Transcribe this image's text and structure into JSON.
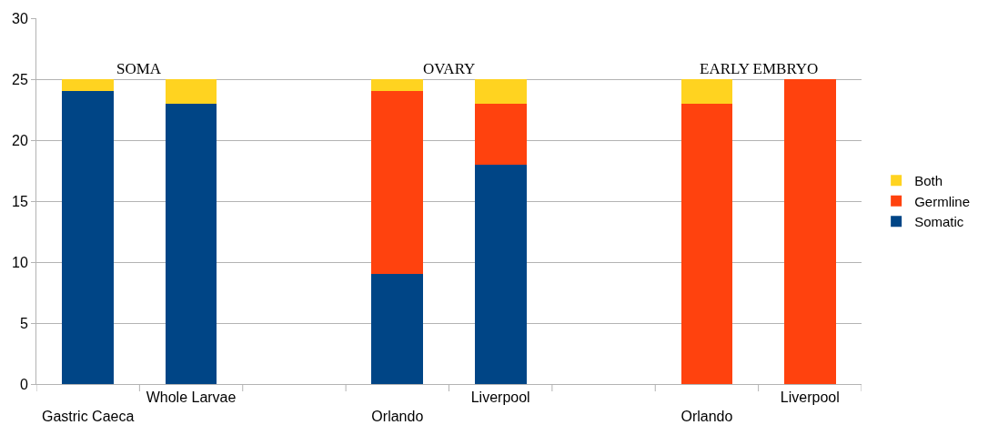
{
  "chart_data": {
    "type": "bar",
    "stacked": true,
    "categories": [
      "Gastric Caeca",
      "Whole Larvae",
      null,
      "Orlando",
      "Liverpool",
      null,
      "Orlando",
      "Liverpool"
    ],
    "series": [
      {
        "name": "Somatic",
        "color": "#004586",
        "values": [
          24,
          23,
          null,
          9,
          18,
          null,
          0,
          0
        ]
      },
      {
        "name": "Germline",
        "color": "#ff420e",
        "values": [
          0,
          0,
          null,
          15,
          5,
          null,
          23,
          25
        ]
      },
      {
        "name": "Both",
        "color": "#ffd320",
        "values": [
          1,
          2,
          null,
          1,
          2,
          null,
          2,
          0
        ]
      }
    ],
    "annotations": [
      "SOMA",
      "OVARY",
      "EARLY EMBRYO"
    ],
    "ylim": [
      0,
      30
    ],
    "yticks": [
      0,
      5,
      10,
      15,
      20,
      25,
      30
    ],
    "grid": "y",
    "legend": "right"
  }
}
